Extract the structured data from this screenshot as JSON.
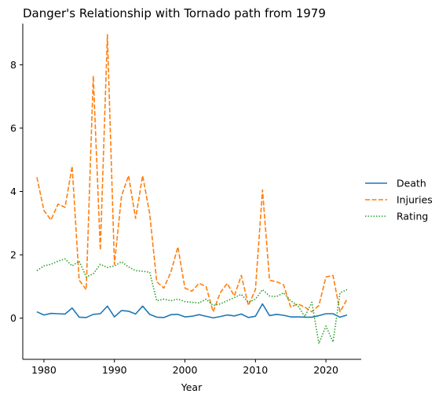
{
  "chart_data": {
    "type": "line",
    "title": "Danger's Relationship with Tornado path from 1979",
    "xlabel": "Year",
    "ylabel": "",
    "xlim": [
      1977,
      2025
    ],
    "ylim": [
      -1.3,
      9.3
    ],
    "xticks": [
      1980,
      1990,
      2000,
      2010,
      2020
    ],
    "yticks": [
      0,
      2,
      4,
      6,
      8
    ],
    "grid": false,
    "legend_position": "right",
    "x": [
      1979,
      1980,
      1981,
      1982,
      1983,
      1984,
      1985,
      1986,
      1987,
      1988,
      1989,
      1990,
      1991,
      1992,
      1993,
      1994,
      1995,
      1996,
      1997,
      1998,
      1999,
      2000,
      2001,
      2002,
      2003,
      2004,
      2005,
      2006,
      2007,
      2008,
      2009,
      2010,
      2011,
      2012,
      2013,
      2014,
      2015,
      2016,
      2017,
      2018,
      2019,
      2020,
      2021,
      2022,
      2023
    ],
    "series": [
      {
        "name": "Death",
        "color": "#1f77b4",
        "dash": "solid",
        "values": [
          0.2,
          0.1,
          0.15,
          0.14,
          0.13,
          0.32,
          0.03,
          0.02,
          0.12,
          0.14,
          0.38,
          0.04,
          0.24,
          0.22,
          0.13,
          0.38,
          0.12,
          0.03,
          0.02,
          0.11,
          0.12,
          0.04,
          0.06,
          0.11,
          0.06,
          0.01,
          0.05,
          0.1,
          0.07,
          0.13,
          0.02,
          0.06,
          0.45,
          0.08,
          0.12,
          0.09,
          0.04,
          0.04,
          0.03,
          0.03,
          0.08,
          0.14,
          0.14,
          0.03,
          0.1
        ]
      },
      {
        "name": "Injuries",
        "color": "#ff7f0e",
        "dash": "dashed",
        "values": [
          4.45,
          3.4,
          3.1,
          3.6,
          3.5,
          4.8,
          1.2,
          0.9,
          7.65,
          2.15,
          8.95,
          1.7,
          3.85,
          4.5,
          3.15,
          4.5,
          3.3,
          1.15,
          0.95,
          1.45,
          2.25,
          0.95,
          0.85,
          1.1,
          1.0,
          0.2,
          0.8,
          1.1,
          0.7,
          1.35,
          0.4,
          0.9,
          4.05,
          1.2,
          1.15,
          1.05,
          0.35,
          0.45,
          0.35,
          0.2,
          0.4,
          1.3,
          1.35,
          0.2,
          0.6
        ]
      },
      {
        "name": "Rating",
        "color": "#2ca02c",
        "dash": "dotted",
        "values": [
          1.5,
          1.65,
          1.7,
          1.8,
          1.87,
          1.65,
          1.8,
          1.3,
          1.4,
          1.7,
          1.6,
          1.65,
          1.78,
          1.62,
          1.5,
          1.48,
          1.45,
          0.55,
          0.6,
          0.55,
          0.6,
          0.52,
          0.5,
          0.48,
          0.6,
          0.4,
          0.45,
          0.55,
          0.65,
          0.75,
          0.5,
          0.6,
          0.9,
          0.7,
          0.68,
          0.8,
          0.55,
          0.4,
          0.05,
          0.5,
          -0.8,
          -0.25,
          -0.75,
          0.8,
          0.9
        ]
      }
    ]
  }
}
